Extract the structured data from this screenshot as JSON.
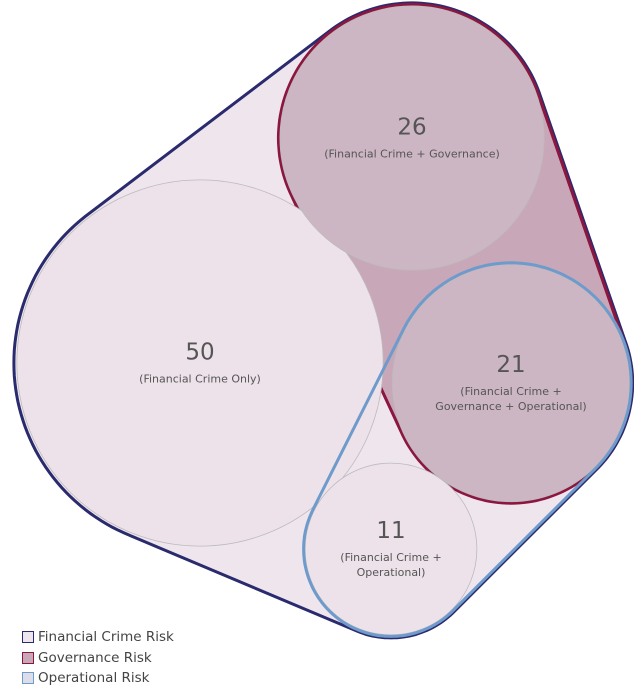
{
  "chart_data": {
    "type": "venn",
    "series": [
      {
        "name": "Financial Crime Risk",
        "color": "#2a2a6e",
        "fill": "#efe5ed"
      },
      {
        "name": "Governance Risk",
        "color": "#8c1640",
        "fill": "#c8a8b8"
      },
      {
        "name": "Operational Risk",
        "color": "#6e9bcb",
        "fill": "#dcdde8"
      }
    ],
    "regions": [
      {
        "value": 50,
        "label": "(Financial Crime Only)",
        "sets": [
          0
        ],
        "color": "#ede2ea"
      },
      {
        "value": 26,
        "label": "(Financial Crime + Governance)",
        "sets": [
          0,
          1
        ],
        "color": "#cdb6c3"
      },
      {
        "value": 21,
        "label": "(Financial Crime + Governance + Operational)",
        "sets": [
          0,
          1,
          2
        ],
        "color": "#cdb6c3"
      },
      {
        "value": 11,
        "label": "(Financial Crime + Operational)",
        "sets": [
          0,
          2
        ],
        "color": "#ede2ea"
      }
    ]
  }
}
